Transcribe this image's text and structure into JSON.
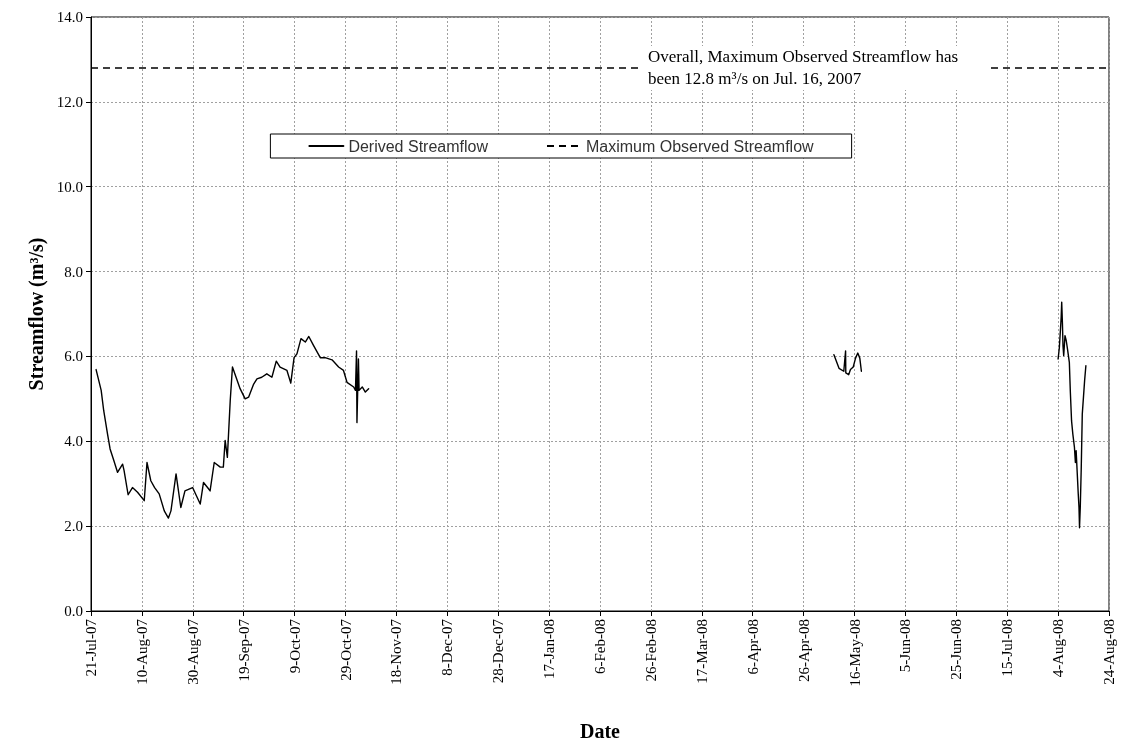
{
  "chart_data": {
    "type": "line",
    "xlabel": "Date",
    "ylabel": "Streamflow (m³/s)",
    "annotations": [
      "Overall, Maximum Observed Streamflow has been 12.8 m³/s on Jul. 16, 2007"
    ],
    "xlim": [
      "2007-07-21",
      "2008-08-24"
    ],
    "xticks": [
      {
        "value": "2007-07-21",
        "label": "21-Jul-07"
      },
      {
        "value": "2007-08-10",
        "label": "10-Aug-07"
      },
      {
        "value": "2007-08-30",
        "label": "30-Aug-07"
      },
      {
        "value": "2007-09-19",
        "label": "19-Sep-07"
      },
      {
        "value": "2007-10-09",
        "label": "9-Oct-07"
      },
      {
        "value": "2007-10-29",
        "label": "29-Oct-07"
      },
      {
        "value": "2007-11-18",
        "label": "18-Nov-07"
      },
      {
        "value": "2007-12-08",
        "label": "8-Dec-07"
      },
      {
        "value": "2007-12-28",
        "label": "28-Dec-07"
      },
      {
        "value": "2008-01-17",
        "label": "17-Jan-08"
      },
      {
        "value": "2008-02-06",
        "label": "6-Feb-08"
      },
      {
        "value": "2008-02-26",
        "label": "26-Feb-08"
      },
      {
        "value": "2008-03-17",
        "label": "17-Mar-08"
      },
      {
        "value": "2008-04-06",
        "label": "6-Apr-08"
      },
      {
        "value": "2008-04-26",
        "label": "26-Apr-08"
      },
      {
        "value": "2008-05-16",
        "label": "16-May-08"
      },
      {
        "value": "2008-06-05",
        "label": "5-Jun-08"
      },
      {
        "value": "2008-06-25",
        "label": "25-Jun-08"
      },
      {
        "value": "2008-07-15",
        "label": "15-Jul-08"
      },
      {
        "value": "2008-08-04",
        "label": "4-Aug-08"
      },
      {
        "value": "2008-08-24",
        "label": "24-Aug-08"
      }
    ],
    "ylim": [
      0,
      14
    ],
    "yticks": [
      {
        "value": 0,
        "label": "0.0"
      },
      {
        "value": 2,
        "label": "2.0"
      },
      {
        "value": 4,
        "label": "4.0"
      },
      {
        "value": 6,
        "label": "6.0"
      },
      {
        "value": 8,
        "label": "8.0"
      },
      {
        "value": 10,
        "label": "10.0"
      },
      {
        "value": 12,
        "label": "12.0"
      },
      {
        "value": 14,
        "label": "14.0"
      }
    ],
    "grid": true,
    "legend": "top",
    "ref_lines": [
      {
        "axis": "y",
        "value": 12.8,
        "label": "Maximum Observed Streamflow",
        "color": "#000000",
        "line_style": "dashed"
      }
    ],
    "series": [
      {
        "name": "Derived Streamflow",
        "color": "#000000",
        "x": [
          "2007-07-23",
          "2007-07-25",
          "2007-07-26",
          "2007-07-27T12:00",
          "2007-07-28T12:00",
          "2007-07-30",
          "2007-07-31T10:00",
          "2007-08-02T10:00",
          "2007-08-03",
          "2007-08-04T14:00",
          "2007-08-06T07:00",
          "2007-08-08T07:00",
          "2007-08-10T22:00",
          "2007-08-12",
          "2007-08-13T12:00",
          "2007-08-15",
          "2007-08-16T19:00",
          "2007-08-18T19:00",
          "2007-08-20T10:00",
          "2007-08-21T10:00",
          "2007-08-23T10:00",
          "2007-08-25T07:00",
          "2007-08-26T22:00",
          "2007-08-29T22:00",
          "2007-09-01T22:00",
          "2007-09-03T05:00",
          "2007-09-04T19:00",
          "2007-09-05T19:00",
          "2007-09-07T10:00",
          "2007-09-09T19:00",
          "2007-09-11",
          "2007-09-11T17:00",
          "2007-09-12T14:00",
          "2007-09-13T17:00",
          "2007-09-14T14:00",
          "2007-09-16",
          "2007-09-17T14:00",
          "2007-09-19T14:00",
          "2007-09-20T22:00",
          "2007-09-22T22:00",
          "2007-09-24T05:00",
          "2007-09-26T02:00",
          "2007-09-28T02:00",
          "2007-09-30T02:00",
          "2007-10-01T19:00",
          "2007-10-03T07:00",
          "2007-10-06",
          "2007-10-07T12:00",
          "2007-10-08T19:00",
          "2007-10-09T22:00",
          "2007-10-11T12:00",
          "2007-10-13T05:00",
          "2007-10-14T14:00",
          "2007-10-16T10:00",
          "2007-10-19T02:00",
          "2007-10-21",
          "2007-10-23T17:00",
          "2007-10-26T07:00",
          "2007-10-28T05:00",
          "2007-10-29T14:00",
          "2007-11-01T05:00",
          "2007-11-01T22:00",
          "2007-11-02T08:00",
          "2007-11-02T12:00",
          "2007-11-03T02:00",
          "2007-11-03T08:00",
          "2007-11-04T14:00",
          "2007-11-05T19:00",
          "2007-11-07T02:00",
          "2008-01-01",
          "2008-05-07T22:00",
          "2008-05-09T22:00",
          "2008-05-11T19:00",
          "2008-05-12T12:00",
          "2008-05-12T14:00",
          "2008-05-13T17:00",
          "2008-05-14T10:00",
          "2008-05-15T12:00",
          "2008-05-16T10:00",
          "2008-05-17T07:00",
          "2008-05-18T02:00",
          "2008-05-18T17:00",
          "2008-06-20",
          "2008-08-04",
          "2008-08-04T12:00",
          "2008-08-05T05:00",
          "2008-08-05T10:00",
          "2008-08-05T17:00",
          "2008-08-05T22:00",
          "2008-08-06T05:00",
          "2008-08-06T17:00",
          "2008-08-07T05:00",
          "2008-08-07T19:00",
          "2008-08-08T10:00",
          "2008-08-08T19:00",
          "2008-08-09T07:00",
          "2008-08-09T19:00",
          "2008-08-10T10:00",
          "2008-08-10T19:00",
          "2008-08-11T02:00",
          "2008-08-11T12:00",
          "2008-08-11T22:00",
          "2008-08-12T05:00",
          "2008-08-12T10:00",
          "2008-08-12T17:00",
          "2008-08-13T02:00",
          "2008-08-13T12:00",
          "2008-08-14",
          "2008-08-14T10:00",
          "2008-08-14T22:00"
        ],
        "values": [
          5.69,
          5.2,
          4.72,
          4.17,
          3.82,
          3.54,
          3.27,
          3.46,
          3.31,
          2.74,
          2.91,
          2.8,
          2.6,
          3.5,
          3.07,
          2.91,
          2.76,
          2.36,
          2.19,
          2.36,
          3.23,
          2.44,
          2.83,
          2.91,
          2.52,
          3.03,
          2.91,
          2.83,
          3.5,
          3.39,
          3.39,
          4.02,
          3.62,
          4.96,
          5.75,
          5.51,
          5.24,
          5.0,
          5.04,
          5.35,
          5.47,
          5.51,
          5.59,
          5.51,
          5.89,
          5.75,
          5.67,
          5.37,
          5.97,
          6.06,
          6.42,
          6.34,
          6.47,
          6.26,
          5.97,
          5.97,
          5.92,
          5.75,
          5.67,
          5.39,
          5.28,
          5.2,
          6.13,
          4.44,
          5.94,
          5.2,
          5.28,
          5.16,
          5.24,
          null,
          6.04,
          5.72,
          5.65,
          6.13,
          5.61,
          5.57,
          5.69,
          5.75,
          5.96,
          6.08,
          5.96,
          5.65,
          null,
          5.94,
          6.21,
          6.92,
          7.28,
          6.77,
          6.25,
          6.02,
          6.49,
          6.37,
          6.13,
          5.86,
          5.19,
          4.48,
          4.17,
          3.86,
          3.5,
          3.78,
          3.27,
          2.76,
          2.44,
          1.96,
          2.44,
          3.34,
          4.64,
          5.07,
          5.43,
          5.78
        ]
      }
    ]
  }
}
